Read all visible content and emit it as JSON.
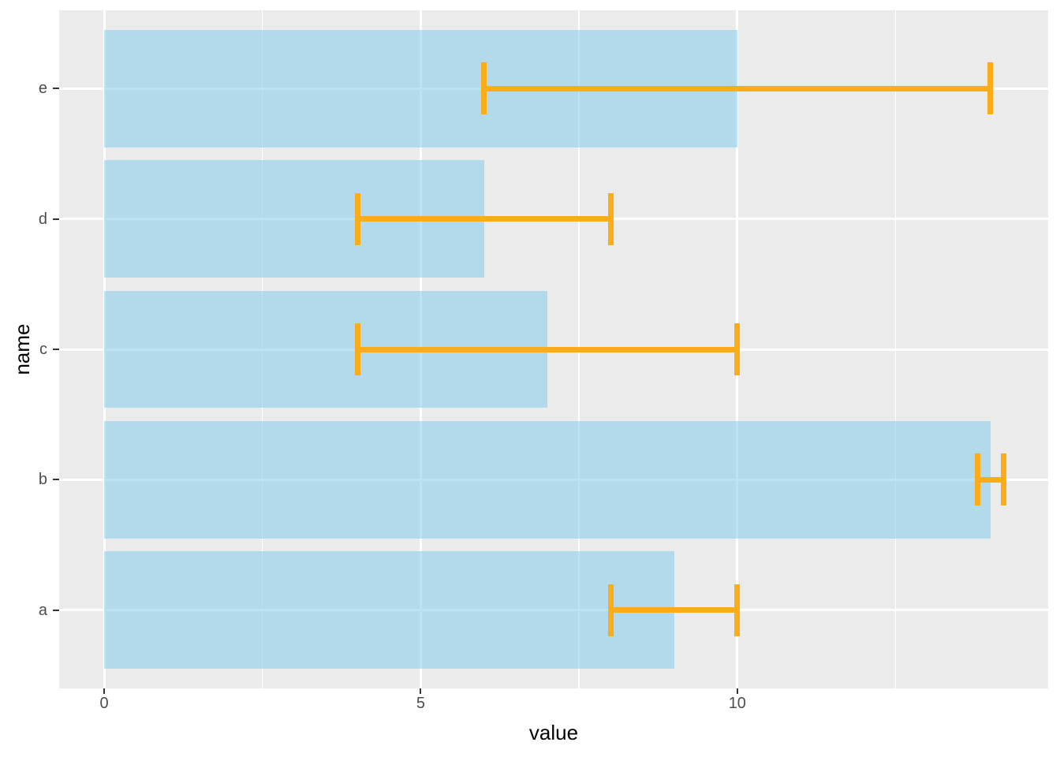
{
  "chart_data": {
    "type": "bar",
    "orientation": "horizontal",
    "title": "",
    "xlabel": "value",
    "ylabel": "name",
    "categories_bottom_to_top": [
      "a",
      "b",
      "c",
      "d",
      "e"
    ],
    "series": [
      {
        "name": "value",
        "values": [
          9,
          14,
          7,
          6,
          10
        ]
      }
    ],
    "error_low": [
      8,
      13.8,
      4,
      4,
      6
    ],
    "error_high": [
      10,
      14.2,
      10,
      8,
      14
    ],
    "x_major_ticks": [
      0,
      5,
      10
    ],
    "x_tick_labels": [
      "0",
      "5",
      "10"
    ],
    "x_minor_ticks": [
      2.5,
      7.5,
      12.5
    ],
    "xlim": [
      -0.71,
      14.91
    ],
    "bar_width_units": 0.9,
    "errorbar_height_units": 0.4,
    "grid": "white major + minor vertical, white major horizontal, on gray panel",
    "legend": "none",
    "colors": {
      "figure_background": "#FFFFFF",
      "panel_background": "#EBEBEB",
      "gridline": "#FFFFFF",
      "bar_fill": "#87CEEB",
      "bar_fill_alpha": 0.57,
      "error_bar": "#FBAC18",
      "tick_label": "#4D4D4D",
      "axis_title": "#000000",
      "tick_mark": "#333333"
    }
  }
}
